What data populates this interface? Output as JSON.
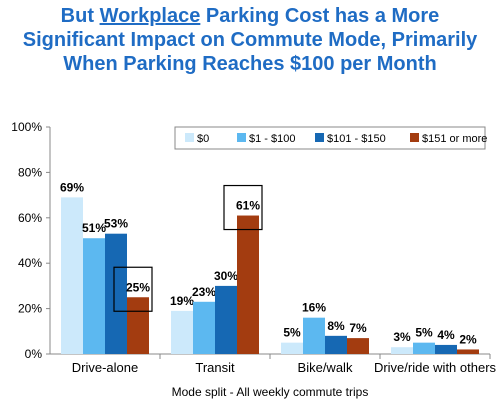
{
  "title": {
    "line1_pre": "But ",
    "line1_underlined": "Workplace",
    "line1_post": " Parking Cost has a More",
    "line2": "Significant Impact on Commute Mode, Primarily",
    "line3": "When Parking Reaches $100 per Month"
  },
  "colors": {
    "title": "#1f6cc4",
    "series": [
      "#cce9fb",
      "#5cb8f0",
      "#1668b3",
      "#a33c10"
    ]
  },
  "chart_data": {
    "type": "bar",
    "title": "But Workplace Parking Cost has a More Significant Impact on Commute Mode, Primarily When Parking Reaches $100 per Month",
    "xlabel": "Mode split - All weekly commute trips",
    "ylabel": "",
    "ylim": [
      0,
      100
    ],
    "yticks": [
      "0%",
      "20%",
      "40%",
      "60%",
      "80%",
      "100%"
    ],
    "grid": false,
    "legend_position": "top-right",
    "categories": [
      "Drive-alone",
      "Transit",
      "Bike/walk",
      "Drive/ride with others"
    ],
    "series": [
      {
        "name": "$0",
        "values": [
          69,
          19,
          5,
          3
        ],
        "labels": [
          "69%",
          "19%",
          "5%",
          "3%"
        ]
      },
      {
        "name": "$1 - $100",
        "values": [
          51,
          23,
          16,
          5
        ],
        "labels": [
          "51%",
          "23%",
          "16%",
          "5%"
        ]
      },
      {
        "name": "$101 - $150",
        "values": [
          53,
          30,
          8,
          4
        ],
        "labels": [
          "53%",
          "30%",
          "8%",
          "4%"
        ]
      },
      {
        "name": "$151 or more",
        "values": [
          25,
          61,
          7,
          2
        ],
        "labels": [
          "25%",
          "61%",
          "7%",
          "2%"
        ]
      }
    ],
    "highlighted": [
      {
        "series": 3,
        "category": 0
      },
      {
        "series": 3,
        "category": 1
      }
    ]
  }
}
